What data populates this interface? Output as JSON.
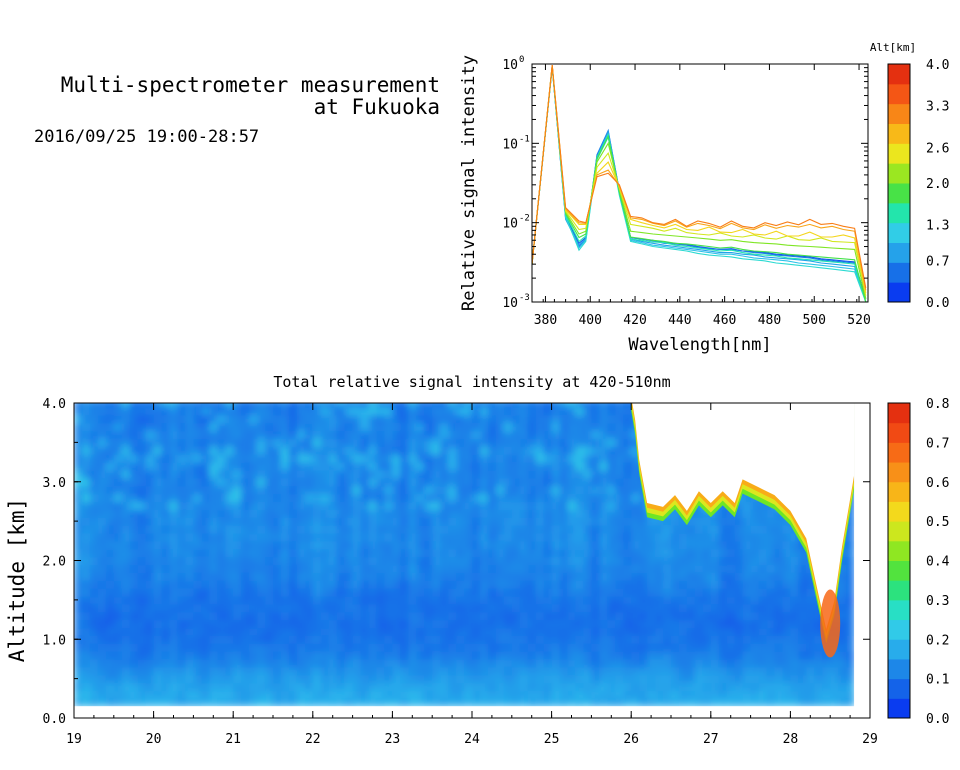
{
  "header": {
    "title_line1": "Multi-spectrometer measurement",
    "title_line2": "at Fukuoka",
    "datetime": "2016/09/25 19:00-28:57"
  },
  "colors": {
    "scale": [
      "#0a3cf0",
      "#1566e8",
      "#1e8ce8",
      "#2ab4ec",
      "#33d2e6",
      "#22e6b4",
      "#32e05a",
      "#6ee626",
      "#b4e81e",
      "#f0e61e",
      "#f8c018",
      "#f89818",
      "#f87016",
      "#f24c14",
      "#e43010"
    ],
    "spectrum_low": "#1f4fb4",
    "spectrum_high": "#e6a800"
  },
  "chart_data": [
    {
      "type": "line",
      "name": "spectrum",
      "xlabel": "Wavelength[nm]",
      "ylabel": "Relative signal intensity",
      "xlim": [
        374,
        524
      ],
      "ylim": [
        0.001,
        1
      ],
      "yscale": "log",
      "x_ticks": [
        380,
        400,
        420,
        440,
        460,
        480,
        500,
        520
      ],
      "y_ticks": [
        {
          "mantissa": "10",
          "exp": "-3",
          "value": 0.001
        },
        {
          "mantissa": "10",
          "exp": "-2",
          "value": 0.01
        },
        {
          "mantissa": "10",
          "exp": "-1",
          "value": 0.1
        },
        {
          "mantissa": "10",
          "exp": "0",
          "value": 1
        }
      ],
      "colorbar": {
        "label": "Alt[km]",
        "ticks": [
          "0.0",
          "0.7",
          "1.3",
          "2.0",
          "2.6",
          "3.3",
          "4.0"
        ],
        "range": [
          0,
          4
        ]
      },
      "x": [
        374,
        383,
        389,
        395,
        398,
        403,
        408,
        413,
        418,
        423,
        428,
        433,
        438,
        443,
        448,
        453,
        458,
        463,
        468,
        473,
        478,
        483,
        488,
        493,
        498,
        503,
        508,
        513,
        518,
        523
      ],
      "series": [
        {
          "alt": 0.2,
          "values": [
            0.003,
            0.92,
            0.012,
            0.0055,
            0.0065,
            0.07,
            0.14,
            0.025,
            0.0065,
            0.0062,
            0.006,
            0.0056,
            0.0055,
            0.0053,
            0.005,
            0.0048,
            0.0046,
            0.0047,
            0.0044,
            0.0043,
            0.0042,
            0.004,
            0.0039,
            0.0038,
            0.0037,
            0.0035,
            0.0034,
            0.0033,
            0.0032,
            0.0011
          ]
        },
        {
          "alt": 0.5,
          "values": [
            0.003,
            0.92,
            0.0115,
            0.005,
            0.0062,
            0.072,
            0.145,
            0.025,
            0.0065,
            0.0062,
            0.0059,
            0.0055,
            0.0054,
            0.0052,
            0.0049,
            0.0047,
            0.0046,
            0.0046,
            0.0044,
            0.0042,
            0.0041,
            0.0039,
            0.0038,
            0.0037,
            0.0036,
            0.0034,
            0.0033,
            0.0032,
            0.0031,
            0.001
          ]
        },
        {
          "alt": 0.8,
          "values": [
            0.003,
            0.93,
            0.011,
            0.0052,
            0.0063,
            0.068,
            0.14,
            0.024,
            0.0062,
            0.0058,
            0.0055,
            0.0052,
            0.005,
            0.0048,
            0.0046,
            0.0044,
            0.0042,
            0.0042,
            0.004,
            0.0039,
            0.0037,
            0.0036,
            0.0035,
            0.0034,
            0.0033,
            0.0031,
            0.003,
            0.0029,
            0.0028,
            0.001
          ]
        },
        {
          "alt": 1.1,
          "values": [
            0.003,
            0.93,
            0.0115,
            0.0048,
            0.006,
            0.065,
            0.13,
            0.023,
            0.006,
            0.0056,
            0.0052,
            0.005,
            0.0048,
            0.0046,
            0.0044,
            0.0042,
            0.004,
            0.004,
            0.0038,
            0.0036,
            0.0035,
            0.0034,
            0.0033,
            0.0031,
            0.003,
            0.0029,
            0.0028,
            0.0027,
            0.0026,
            0.001
          ]
        },
        {
          "alt": 1.4,
          "values": [
            0.003,
            0.94,
            0.012,
            0.0045,
            0.0058,
            0.062,
            0.12,
            0.022,
            0.0058,
            0.0054,
            0.005,
            0.0048,
            0.0046,
            0.0044,
            0.0041,
            0.0039,
            0.0038,
            0.0037,
            0.0035,
            0.0034,
            0.0033,
            0.0031,
            0.003,
            0.0029,
            0.0028,
            0.0027,
            0.0026,
            0.0025,
            0.0024,
            0.001
          ]
        },
        {
          "alt": 1.6,
          "values": [
            0.003,
            0.94,
            0.0125,
            0.0058,
            0.0068,
            0.066,
            0.128,
            0.024,
            0.0062,
            0.006,
            0.0057,
            0.0056,
            0.0052,
            0.005,
            0.0048,
            0.0046,
            0.0044,
            0.0045,
            0.0042,
            0.004,
            0.0039,
            0.0038,
            0.0036,
            0.0035,
            0.0034,
            0.0033,
            0.0032,
            0.0031,
            0.003,
            0.001
          ]
        },
        {
          "alt": 2.0,
          "values": [
            0.003,
            0.95,
            0.013,
            0.0065,
            0.0072,
            0.064,
            0.122,
            0.024,
            0.0066,
            0.0063,
            0.006,
            0.0058,
            0.0055,
            0.0054,
            0.0052,
            0.005,
            0.0048,
            0.0049,
            0.0046,
            0.0044,
            0.0043,
            0.0042,
            0.004,
            0.0039,
            0.0038,
            0.0037,
            0.0036,
            0.0035,
            0.0034,
            0.001
          ]
        },
        {
          "alt": 2.3,
          "values": [
            0.003,
            0.95,
            0.0135,
            0.0072,
            0.0078,
            0.058,
            0.1,
            0.026,
            0.0078,
            0.0075,
            0.0072,
            0.007,
            0.0068,
            0.0066,
            0.0064,
            0.0062,
            0.006,
            0.0061,
            0.0058,
            0.0056,
            0.0055,
            0.0054,
            0.0052,
            0.0051,
            0.005,
            0.0049,
            0.0048,
            0.0047,
            0.0046,
            0.0011
          ]
        },
        {
          "alt": 2.7,
          "values": [
            0.003,
            0.96,
            0.014,
            0.0082,
            0.0085,
            0.05,
            0.075,
            0.027,
            0.0095,
            0.009,
            0.0085,
            0.0078,
            0.0085,
            0.0075,
            0.0072,
            0.007,
            0.0074,
            0.0068,
            0.0066,
            0.007,
            0.0064,
            0.0062,
            0.0068,
            0.0061,
            0.006,
            0.0064,
            0.0058,
            0.0057,
            0.0056,
            0.0012
          ]
        },
        {
          "alt": 3.0,
          "values": [
            0.003,
            0.96,
            0.0145,
            0.0095,
            0.0095,
            0.042,
            0.058,
            0.028,
            0.011,
            0.01,
            0.0092,
            0.0086,
            0.0095,
            0.0082,
            0.008,
            0.0088,
            0.0076,
            0.0075,
            0.0082,
            0.0072,
            0.007,
            0.0078,
            0.0068,
            0.0068,
            0.0076,
            0.0066,
            0.0066,
            0.007,
            0.0064,
            0.0013
          ]
        },
        {
          "alt": 3.4,
          "values": [
            0.003,
            0.97,
            0.015,
            0.01,
            0.0098,
            0.04,
            0.046,
            0.029,
            0.0115,
            0.011,
            0.0098,
            0.0092,
            0.0105,
            0.0088,
            0.0098,
            0.0092,
            0.0084,
            0.0098,
            0.0086,
            0.0082,
            0.0094,
            0.0085,
            0.0092,
            0.0088,
            0.0095,
            0.0086,
            0.009,
            0.0082,
            0.0078,
            0.0014
          ]
        },
        {
          "alt": 3.7,
          "values": [
            0.003,
            0.97,
            0.0155,
            0.0105,
            0.01,
            0.038,
            0.042,
            0.03,
            0.012,
            0.0115,
            0.01,
            0.0095,
            0.011,
            0.009,
            0.0105,
            0.0098,
            0.0088,
            0.0105,
            0.009,
            0.0086,
            0.01,
            0.0092,
            0.0102,
            0.0094,
            0.011,
            0.0095,
            0.0098,
            0.009,
            0.0085,
            0.0015
          ]
        }
      ]
    },
    {
      "type": "heatmap",
      "name": "total-intensity",
      "title": "Total relative signal intensity at 420-510nm",
      "xlabel": "",
      "ylabel": "Altitude [km]",
      "xlim": [
        19,
        29
      ],
      "ylim": [
        0,
        4
      ],
      "x_ticks": [
        "19",
        "20",
        "21",
        "22",
        "23",
        "24",
        "25",
        "26",
        "27",
        "28",
        "29"
      ],
      "y_ticks": [
        "0.0",
        "1.0",
        "2.0",
        "3.0",
        "4.0"
      ],
      "colorbar": {
        "ticks": [
          "0.0",
          "0.1",
          "0.2",
          "0.3",
          "0.4",
          "0.5",
          "0.6",
          "0.7",
          "0.8"
        ],
        "range": [
          0,
          0.8
        ]
      },
      "data_x_range": [
        19.0,
        28.8
      ],
      "data_y_range": [
        0.15,
        4.0
      ],
      "altitude_profile": [
        {
          "alt": 0.2,
          "value": 0.16
        },
        {
          "alt": 0.5,
          "value": 0.13
        },
        {
          "alt": 0.8,
          "value": 0.085
        },
        {
          "alt": 1.1,
          "value": 0.07
        },
        {
          "alt": 1.4,
          "value": 0.075
        },
        {
          "alt": 1.8,
          "value": 0.1
        },
        {
          "alt": 2.2,
          "value": 0.11
        },
        {
          "alt": 2.6,
          "value": 0.11
        },
        {
          "alt": 3.0,
          "value": 0.1
        },
        {
          "alt": 3.4,
          "value": 0.1
        },
        {
          "alt": 3.8,
          "value": 0.09
        }
      ],
      "cloud_base_km": [
        {
          "t": 26.0,
          "alt": 3.9
        },
        {
          "t": 26.05,
          "alt": 3.6
        },
        {
          "t": 26.1,
          "alt": 3.1
        },
        {
          "t": 26.2,
          "alt": 2.55
        },
        {
          "t": 26.4,
          "alt": 2.5
        },
        {
          "t": 26.55,
          "alt": 2.65
        },
        {
          "t": 26.7,
          "alt": 2.45
        },
        {
          "t": 26.85,
          "alt": 2.7
        },
        {
          "t": 27.0,
          "alt": 2.55
        },
        {
          "t": 27.15,
          "alt": 2.7
        },
        {
          "t": 27.3,
          "alt": 2.55
        },
        {
          "t": 27.4,
          "alt": 2.85
        },
        {
          "t": 27.6,
          "alt": 2.75
        },
        {
          "t": 27.8,
          "alt": 2.65
        },
        {
          "t": 28.0,
          "alt": 2.45
        },
        {
          "t": 28.2,
          "alt": 2.1
        },
        {
          "t": 28.35,
          "alt": 1.4
        },
        {
          "t": 28.45,
          "alt": 0.95
        },
        {
          "t": 28.55,
          "alt": 1.3
        },
        {
          "t": 28.65,
          "alt": 2.0
        },
        {
          "t": 28.75,
          "alt": 2.6
        },
        {
          "t": 28.8,
          "alt": 2.9
        }
      ],
      "cloud_anomaly": {
        "t": 28.5,
        "alt": 0.8,
        "value": 0.7
      }
    }
  ]
}
